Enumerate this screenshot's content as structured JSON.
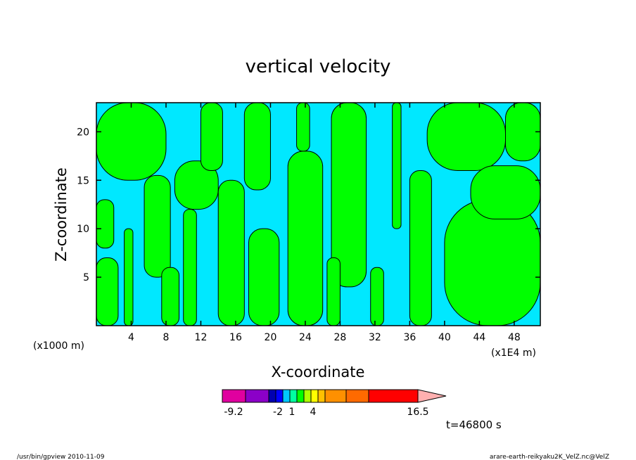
{
  "chart_data": {
    "type": "heatmap",
    "title": "vertical velocity",
    "xlabel": "X-coordinate",
    "ylabel": "Z-coordinate",
    "x_unit_label": "(x1E4 m)",
    "y_unit_label": "(x1000 m)",
    "x_ticks": [
      4,
      8,
      12,
      16,
      20,
      24,
      28,
      32,
      36,
      40,
      44,
      48
    ],
    "y_ticks": [
      5,
      10,
      15,
      20
    ],
    "xlim": [
      0,
      51
    ],
    "ylim": [
      0,
      23
    ],
    "time_label": "t=46800 s",
    "field_colors": {
      "negative": "#00e8ff",
      "positive": "#00ff00",
      "contour": "#000000"
    },
    "colorbar": {
      "colors": [
        "#e0009f",
        "#8b00c8",
        "#0000b0",
        "#0000ff",
        "#00c8ff",
        "#00ffa0",
        "#00ff00",
        "#b0ff00",
        "#ffff00",
        "#ffc000",
        "#ff9000",
        "#ff6a00",
        "#ff0000",
        "#ff8080"
      ],
      "labels": [
        "-9.2",
        "-2",
        "1",
        "4",
        "16.5"
      ],
      "extend": "max",
      "extend_color": "#ffb0b0"
    },
    "positive_regions": [
      {
        "x": [
          0.0,
          2.5
        ],
        "z": [
          0.0,
          7.0
        ]
      },
      {
        "x": [
          0.0,
          8.0
        ],
        "z": [
          15.0,
          23.0
        ]
      },
      {
        "x": [
          0.0,
          2.0
        ],
        "z": [
          8.0,
          13.0
        ]
      },
      {
        "x": [
          3.2,
          4.2
        ],
        "z": [
          0.0,
          10.0
        ]
      },
      {
        "x": [
          5.5,
          8.5
        ],
        "z": [
          5.0,
          15.5
        ]
      },
      {
        "x": [
          7.5,
          9.5
        ],
        "z": [
          0.0,
          6.0
        ]
      },
      {
        "x": [
          10.0,
          11.5
        ],
        "z": [
          0.0,
          12.0
        ]
      },
      {
        "x": [
          9.0,
          14.0
        ],
        "z": [
          12.0,
          17.0
        ]
      },
      {
        "x": [
          12.0,
          14.5
        ],
        "z": [
          16.0,
          23.0
        ]
      },
      {
        "x": [
          14.0,
          17.0
        ],
        "z": [
          0.0,
          15.0
        ]
      },
      {
        "x": [
          17.5,
          21.0
        ],
        "z": [
          0.0,
          10.0
        ]
      },
      {
        "x": [
          17.0,
          20.0
        ],
        "z": [
          14.0,
          23.0
        ]
      },
      {
        "x": [
          22.0,
          26.0
        ],
        "z": [
          0.0,
          18.0
        ]
      },
      {
        "x": [
          23.0,
          24.5
        ],
        "z": [
          18.0,
          23.0
        ]
      },
      {
        "x": [
          27.0,
          31.0
        ],
        "z": [
          4.0,
          23.0
        ]
      },
      {
        "x": [
          26.5,
          28.0
        ],
        "z": [
          0.0,
          7.0
        ]
      },
      {
        "x": [
          31.5,
          33.0
        ],
        "z": [
          0.0,
          6.0
        ]
      },
      {
        "x": [
          34.0,
          35.0
        ],
        "z": [
          10.0,
          23.0
        ]
      },
      {
        "x": [
          36.0,
          38.5
        ],
        "z": [
          0.0,
          16.0
        ]
      },
      {
        "x": [
          38.0,
          47.0
        ],
        "z": [
          16.0,
          23.0
        ]
      },
      {
        "x": [
          40.0,
          51.0
        ],
        "z": [
          0.0,
          13.0
        ]
      },
      {
        "x": [
          43.0,
          51.0
        ],
        "z": [
          11.0,
          16.5
        ]
      },
      {
        "x": [
          47.0,
          51.0
        ],
        "z": [
          17.0,
          23.0
        ]
      }
    ]
  },
  "footer": {
    "left": "/usr/bin/gpview   2010-11-09",
    "right": "arare-earth-reikyaku2K_VelZ.nc@VelZ"
  }
}
